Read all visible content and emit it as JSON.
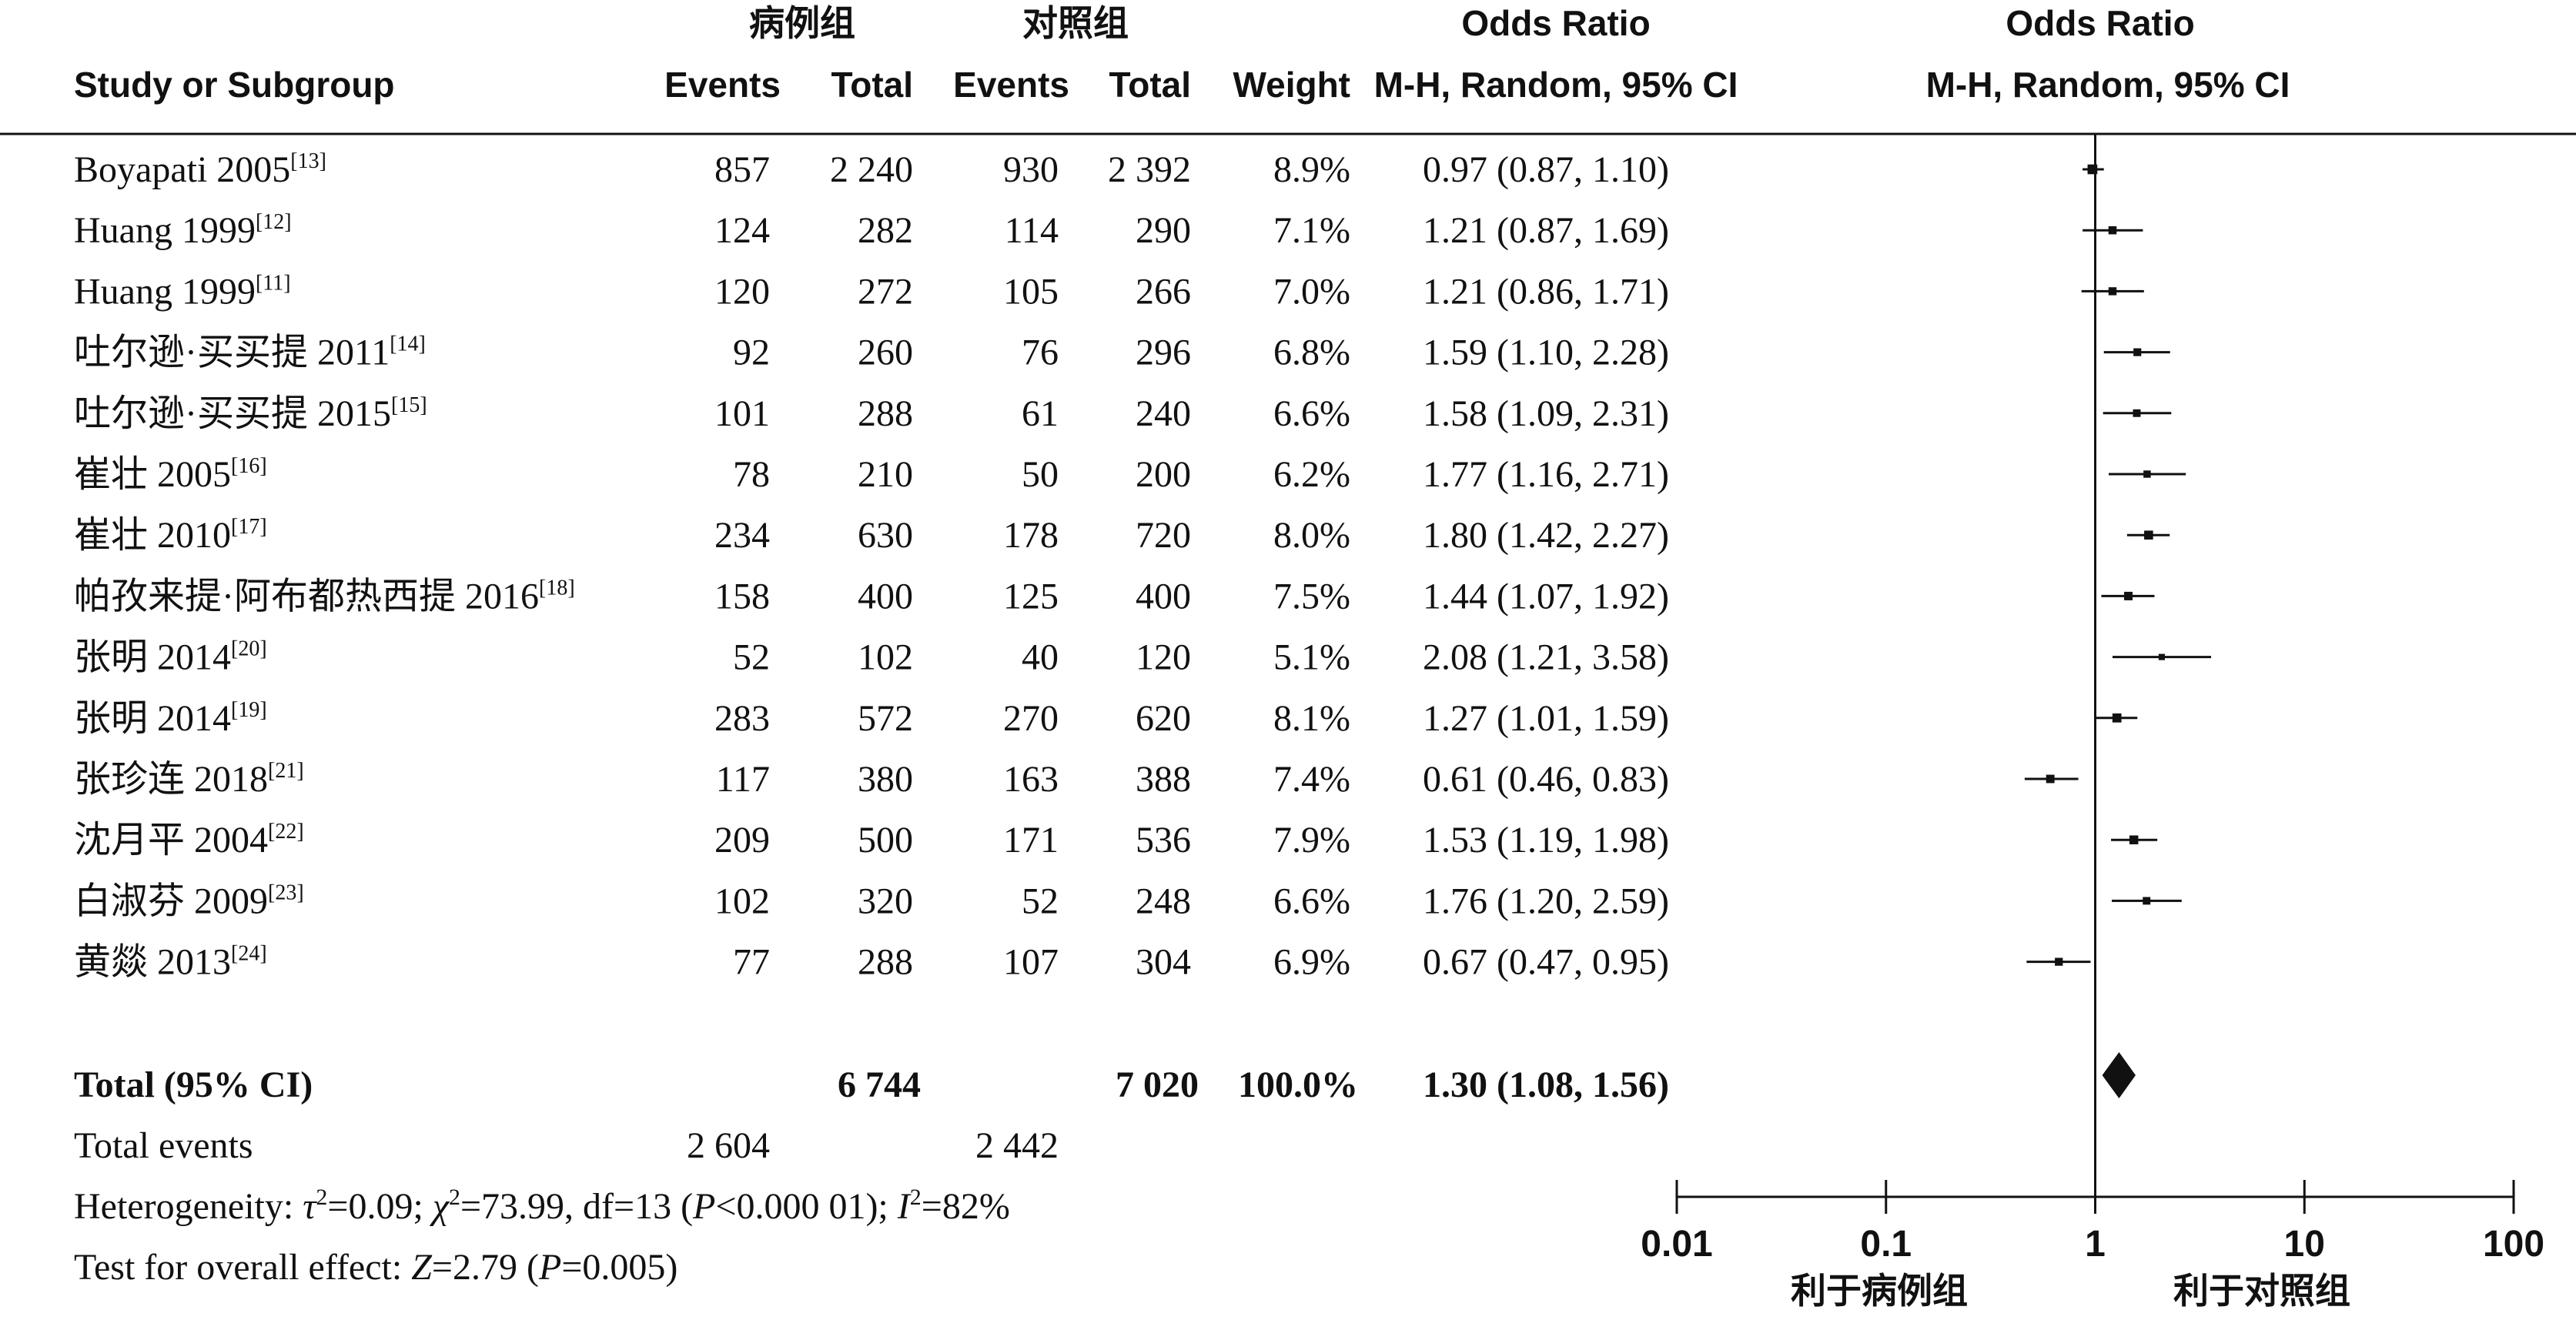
{
  "header": {
    "case_group": "病例组",
    "control_group": "对照组",
    "odds_ratio_1": "Odds Ratio",
    "odds_ratio_2": "Odds Ratio",
    "study_label": "Study or Subgroup",
    "events_1": "Events",
    "total_1": "Total",
    "events_2": "Events",
    "total_2": "Total",
    "weight": "Weight",
    "method_1": "M-H, Random, 95% CI",
    "method_2": "M-H, Random, 95% CI"
  },
  "studies": [
    {
      "name": "Boyapati 2005",
      "ref": "[13]",
      "e1": "857",
      "t1": "2 240",
      "e2": "930",
      "t2": "2 392",
      "weight": "8.9%",
      "ci_text": "0.97 (0.87, 1.10)"
    },
    {
      "name": "Huang 1999",
      "ref": "[12]",
      "e1": "124",
      "t1": "282",
      "e2": "114",
      "t2": "290",
      "weight": "7.1%",
      "ci_text": "1.21 (0.87, 1.69)"
    },
    {
      "name": "Huang 1999",
      "ref": "[11]",
      "e1": "120",
      "t1": "272",
      "e2": "105",
      "t2": "266",
      "weight": "7.0%",
      "ci_text": "1.21 (0.86, 1.71)"
    },
    {
      "name": "吐尔逊·买买提 2011",
      "ref": "[14]",
      "e1": "92",
      "t1": "260",
      "e2": "76",
      "t2": "296",
      "weight": "6.8%",
      "ci_text": "1.59 (1.10, 2.28)"
    },
    {
      "name": "吐尔逊·买买提 2015",
      "ref": "[15]",
      "e1": "101",
      "t1": "288",
      "e2": "61",
      "t2": "240",
      "weight": "6.6%",
      "ci_text": "1.58 (1.09, 2.31)"
    },
    {
      "name": "崔壮 2005",
      "ref": "[16]",
      "e1": "78",
      "t1": "210",
      "e2": "50",
      "t2": "200",
      "weight": "6.2%",
      "ci_text": "1.77 (1.16, 2.71)"
    },
    {
      "name": "崔壮 2010",
      "ref": "[17]",
      "e1": "234",
      "t1": "630",
      "e2": "178",
      "t2": "720",
      "weight": "8.0%",
      "ci_text": "1.80 (1.42, 2.27)"
    },
    {
      "name": "帕孜来提·阿布都热西提 2016",
      "ref": "[18]",
      "e1": "158",
      "t1": "400",
      "e2": "125",
      "t2": "400",
      "weight": "7.5%",
      "ci_text": "1.44 (1.07, 1.92)"
    },
    {
      "name": "张明 2014",
      "ref": "[20]",
      "e1": "52",
      "t1": "102",
      "e2": "40",
      "t2": "120",
      "weight": "5.1%",
      "ci_text": "2.08 (1.21, 3.58)"
    },
    {
      "name": "张明 2014",
      "ref": "[19]",
      "e1": "283",
      "t1": "572",
      "e2": "270",
      "t2": "620",
      "weight": "8.1%",
      "ci_text": "1.27 (1.01, 1.59)"
    },
    {
      "name": "张珍连 2018",
      "ref": "[21]",
      "e1": "117",
      "t1": "380",
      "e2": "163",
      "t2": "388",
      "weight": "7.4%",
      "ci_text": "0.61 (0.46, 0.83)"
    },
    {
      "name": "沈月平 2004",
      "ref": "[22]",
      "e1": "209",
      "t1": "500",
      "e2": "171",
      "t2": "536",
      "weight": "7.9%",
      "ci_text": "1.53 (1.19, 1.98)"
    },
    {
      "name": "白淑芬 2009",
      "ref": "[23]",
      "e1": "102",
      "t1": "320",
      "e2": "52",
      "t2": "248",
      "weight": "6.6%",
      "ci_text": "1.76 (1.20, 2.59)"
    },
    {
      "name": "黄燚 2013",
      "ref": "[24]",
      "e1": "77",
      "t1": "288",
      "e2": "107",
      "t2": "304",
      "weight": "6.9%",
      "ci_text": "0.67 (0.47, 0.95)"
    }
  ],
  "total": {
    "label": "Total (95% CI)",
    "t1": "6 744",
    "t2": "7 020",
    "weight": "100.0%",
    "ci_text": "1.30 (1.08, 1.56)"
  },
  "total_events": {
    "label": "Total events",
    "e1": "2 604",
    "e2": "2 442"
  },
  "heterogeneity": {
    "label": "Heterogeneity: ",
    "tau_sym": "τ",
    "tau_val": "=0.09; ",
    "chi_sym": "χ",
    "chi_val": "=73.99, df=13 (",
    "p_sym": "P",
    "p_val": "<0.000 01); ",
    "i_sym": "I",
    "i_val": "=82%",
    "sup": "2"
  },
  "overall_effect": {
    "label": "Test for overall effect: ",
    "z_sym": "Z",
    "z_val": "=2.79 (",
    "p_sym": "P",
    "p_val": "=0.005)"
  },
  "chart_data": {
    "type": "forest",
    "scale": "log",
    "xlim": [
      0.01,
      100
    ],
    "ticks": [
      0.01,
      0.1,
      1,
      10,
      100
    ],
    "tick_labels": [
      "0.01",
      "0.1",
      "1",
      "10",
      "100"
    ],
    "favours_left": "利于病例组",
    "favours_right": "利于对照组",
    "points": [
      {
        "or": 0.97,
        "lo": 0.87,
        "hi": 1.1,
        "weight": 8.9
      },
      {
        "or": 1.21,
        "lo": 0.87,
        "hi": 1.69,
        "weight": 7.1
      },
      {
        "or": 1.21,
        "lo": 0.86,
        "hi": 1.71,
        "weight": 7.0
      },
      {
        "or": 1.59,
        "lo": 1.1,
        "hi": 2.28,
        "weight": 6.8
      },
      {
        "or": 1.58,
        "lo": 1.09,
        "hi": 2.31,
        "weight": 6.6
      },
      {
        "or": 1.77,
        "lo": 1.16,
        "hi": 2.71,
        "weight": 6.2
      },
      {
        "or": 1.8,
        "lo": 1.42,
        "hi": 2.27,
        "weight": 8.0
      },
      {
        "or": 1.44,
        "lo": 1.07,
        "hi": 1.92,
        "weight": 7.5
      },
      {
        "or": 2.08,
        "lo": 1.21,
        "hi": 3.58,
        "weight": 5.1
      },
      {
        "or": 1.27,
        "lo": 1.01,
        "hi": 1.59,
        "weight": 8.1
      },
      {
        "or": 0.61,
        "lo": 0.46,
        "hi": 0.83,
        "weight": 7.4
      },
      {
        "or": 1.53,
        "lo": 1.19,
        "hi": 1.98,
        "weight": 7.9
      },
      {
        "or": 1.76,
        "lo": 1.2,
        "hi": 2.59,
        "weight": 6.6
      },
      {
        "or": 0.67,
        "lo": 0.47,
        "hi": 0.95,
        "weight": 6.9
      }
    ],
    "pooled": {
      "or": 1.3,
      "lo": 1.08,
      "hi": 1.56
    }
  }
}
